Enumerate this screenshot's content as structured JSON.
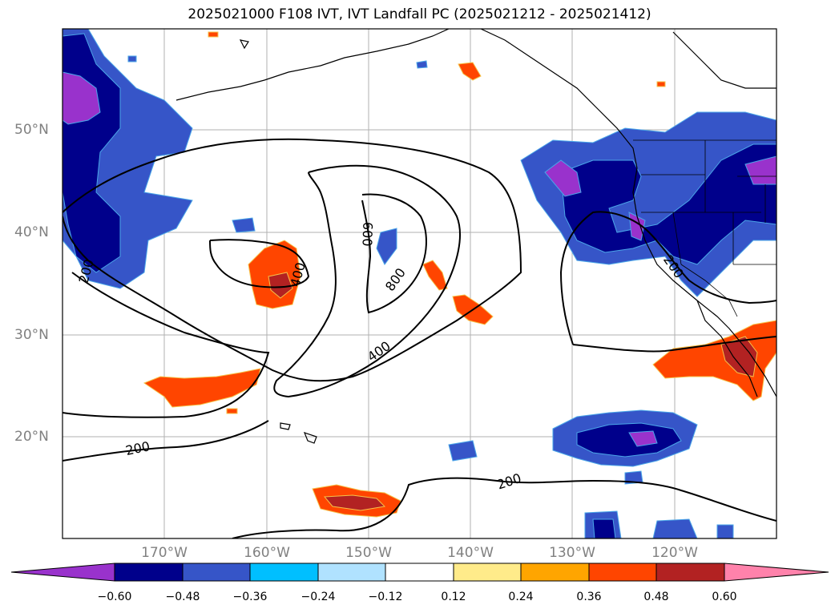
{
  "title": "2025021000 F108 IVT, IVT Landfall PC (2025021212 - 2025021412)",
  "lon_labels": [
    "170°W",
    "160°W",
    "150°W",
    "140°W",
    "130°W",
    "120°W"
  ],
  "lat_labels": [
    "50°N",
    "40°N",
    "30°N",
    "20°N"
  ],
  "contour_labels": [
    "200",
    "200",
    "200",
    "200",
    "400",
    "400",
    "600",
    "800"
  ],
  "colorbar": {
    "ticks": [
      "−0.60",
      "−0.48",
      "−0.36",
      "−0.24",
      "−0.12",
      "0.12",
      "0.24",
      "0.36",
      "0.48",
      "0.60"
    ],
    "colors": [
      "#9932cc",
      "#00008b",
      "#3655c8",
      "#00bfff",
      "#b0e2ff",
      "#ffffff",
      "#ffeb8a",
      "#ffa500",
      "#ff4500",
      "#b22222",
      "#ff82ab"
    ]
  },
  "colors": {
    "gridline": "#b0b0b0",
    "contour": "#000000",
    "tick_label": "#808080"
  }
}
